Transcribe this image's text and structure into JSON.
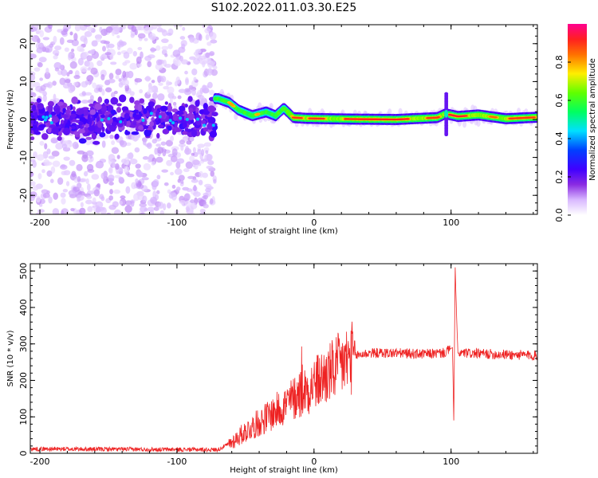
{
  "title": "S102.2022.011.03.30.E25",
  "colors": {
    "snr_line": "#ee2222",
    "frame": "#000000",
    "colorbar_stops": [
      "#f3f0ff",
      "#8a2be2",
      "#5a00ff",
      "#0010ff",
      "#00e0ff",
      "#00ff40",
      "#c0ff00",
      "#ffe000",
      "#ff8000",
      "#ff2020",
      "#ff0080"
    ]
  },
  "chart_data": [
    {
      "type": "heatmap",
      "xlabel": "Height of straight line (km)",
      "ylabel": "Frequency (Hz)",
      "xlim": [
        -207,
        163
      ],
      "ylim": [
        -25,
        25
      ],
      "xticks": [
        -200,
        -100,
        0,
        100
      ],
      "xtick_labels": [
        "-200",
        "-100",
        "0",
        "100"
      ],
      "yticks": [
        -20,
        -10,
        0,
        10,
        20
      ],
      "ytick_labels": [
        "-20",
        "-10",
        "0",
        "10",
        "20"
      ],
      "colorbar": {
        "label": "Normalized spectral amplitude",
        "range": [
          0,
          1
        ],
        "ticks": [
          0.0,
          0.2,
          0.4,
          0.6,
          0.8
        ],
        "tick_labels": [
          "0.0",
          "0.2",
          "0.4",
          "0.6",
          "0.8"
        ]
      },
      "ridge": [
        [
          -70,
          5.5
        ],
        [
          -62,
          4.5
        ],
        [
          -55,
          2.5
        ],
        [
          -45,
          1.0
        ],
        [
          -35,
          2.0
        ],
        [
          -28,
          1.0
        ],
        [
          -22,
          3.0
        ],
        [
          -15,
          0.5
        ],
        [
          -5,
          0.3
        ],
        [
          10,
          0.2
        ],
        [
          30,
          0.1
        ],
        [
          60,
          0.0
        ],
        [
          90,
          0.5
        ],
        [
          96,
          1.5
        ],
        [
          105,
          0.8
        ],
        [
          120,
          1.2
        ],
        [
          140,
          0.2
        ],
        [
          163,
          0.6
        ]
      ],
      "grid": false
    },
    {
      "type": "line",
      "xlabel": "Height of straight line (km)",
      "ylabel": "SNR (10 * v/v)",
      "xlim": [
        -207,
        163
      ],
      "ylim": [
        0,
        520
      ],
      "xticks": [
        -200,
        -100,
        0,
        100
      ],
      "xtick_labels": [
        "-200",
        "-100",
        "0",
        "100"
      ],
      "yticks": [
        0,
        100,
        200,
        300,
        400,
        500
      ],
      "ytick_labels": [
        "0",
        "100",
        "200",
        "300",
        "400",
        "500"
      ],
      "series_trend": [
        [
          -207,
          12
        ],
        [
          -70,
          10
        ],
        [
          -60,
          30
        ],
        [
          -50,
          60
        ],
        [
          -40,
          85
        ],
        [
          -30,
          110
        ],
        [
          -20,
          135
        ],
        [
          -10,
          165
        ],
        [
          0,
          190
        ],
        [
          10,
          215
        ],
        [
          20,
          245
        ],
        [
          30,
          268
        ],
        [
          40,
          275
        ],
        [
          60,
          275
        ],
        [
          80,
          272
        ],
        [
          95,
          275
        ],
        [
          101,
          290
        ],
        [
          102,
          90
        ],
        [
          103,
          510
        ],
        [
          104,
          380
        ],
        [
          105,
          275
        ],
        [
          163,
          268
        ]
      ],
      "grid": false
    }
  ]
}
